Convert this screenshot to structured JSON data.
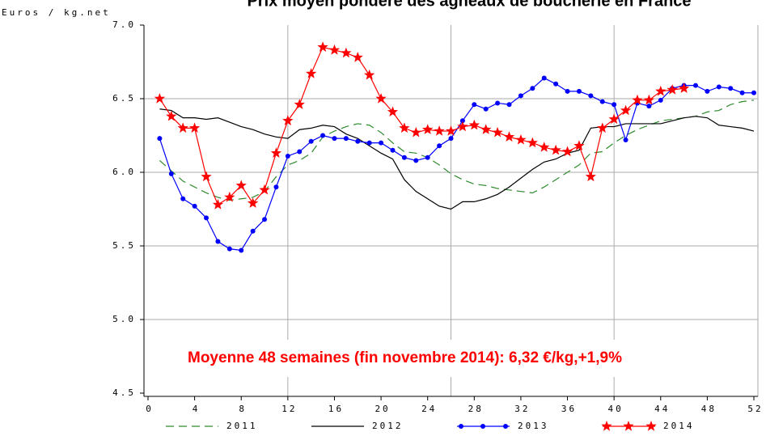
{
  "chart_data": {
    "type": "line",
    "title": "Prix moyen pondéré des agneaux de boucherie en France",
    "y_label": "Euros / kg.net",
    "annotation": "Moyenne 48 semaines (fin novembre 2014): 6,32 €/kg,+1,9%",
    "x": [
      1,
      2,
      3,
      4,
      5,
      6,
      7,
      8,
      9,
      10,
      11,
      12,
      13,
      14,
      15,
      16,
      17,
      18,
      19,
      20,
      21,
      22,
      23,
      24,
      25,
      26,
      27,
      28,
      29,
      30,
      31,
      32,
      33,
      34,
      35,
      36,
      37,
      38,
      39,
      40,
      41,
      42,
      43,
      44,
      45,
      46,
      47,
      48,
      49,
      50,
      51,
      52
    ],
    "xlim": [
      0,
      52
    ],
    "xticks": [
      0,
      4,
      8,
      12,
      16,
      20,
      24,
      28,
      32,
      36,
      40,
      44,
      48,
      52
    ],
    "x_grid_at": [
      12,
      26,
      40
    ],
    "ylim": [
      4.5,
      7
    ],
    "yticks": [
      {
        "value": 4.5,
        "label": "4.5"
      },
      {
        "value": 5,
        "label": "5.0"
      },
      {
        "value": 5.5,
        "label": "5.5"
      },
      {
        "value": 6,
        "label": "6.0"
      },
      {
        "value": 6.5,
        "label": "6.5"
      },
      {
        "value": 7,
        "label": "7.0"
      }
    ],
    "y_grid_at": [
      5,
      5.5,
      6,
      6.5
    ],
    "legend": "bottom",
    "series": [
      {
        "name": "2011",
        "color": "#2e8b2e",
        "dash": true,
        "marker": "none",
        "values": [
          6.08,
          6.01,
          5.94,
          5.9,
          5.86,
          5.83,
          5.81,
          5.82,
          5.83,
          5.87,
          5.97,
          6.05,
          6.08,
          6.13,
          6.24,
          6.28,
          6.31,
          6.33,
          6.32,
          6.27,
          6.2,
          6.14,
          6.13,
          6.1,
          6.05,
          5.99,
          5.95,
          5.92,
          5.91,
          5.89,
          5.88,
          5.87,
          5.86,
          5.9,
          5.95,
          6.0,
          6.05,
          6.13,
          6.14,
          6.2,
          6.25,
          6.29,
          6.32,
          6.35,
          6.36,
          6.37,
          6.38,
          6.41,
          6.42,
          6.46,
          6.48,
          6.49
        ]
      },
      {
        "name": "2012",
        "color": "#000000",
        "dash": false,
        "marker": "none",
        "values": [
          6.43,
          6.42,
          6.37,
          6.37,
          6.36,
          6.37,
          6.34,
          6.31,
          6.29,
          6.26,
          6.24,
          6.23,
          6.29,
          6.3,
          6.32,
          6.31,
          6.26,
          6.23,
          6.18,
          6.13,
          6.09,
          5.95,
          5.87,
          5.82,
          5.77,
          5.75,
          5.8,
          5.8,
          5.82,
          5.85,
          5.9,
          5.96,
          6.02,
          6.07,
          6.09,
          6.13,
          6.15,
          6.3,
          6.31,
          6.31,
          6.33,
          6.33,
          6.33,
          6.33,
          6.35,
          6.37,
          6.38,
          6.37,
          6.32,
          6.31,
          6.3,
          6.28
        ]
      },
      {
        "name": "2013",
        "color": "#0000ff",
        "dash": false,
        "marker": "circle",
        "values": [
          6.23,
          5.99,
          5.82,
          5.77,
          5.69,
          5.53,
          5.48,
          5.47,
          5.6,
          5.68,
          5.9,
          6.11,
          6.14,
          6.21,
          6.25,
          6.23,
          6.23,
          6.21,
          6.2,
          6.2,
          6.15,
          6.1,
          6.08,
          6.1,
          6.18,
          6.23,
          6.35,
          6.46,
          6.43,
          6.47,
          6.46,
          6.52,
          6.57,
          6.64,
          6.6,
          6.55,
          6.55,
          6.52,
          6.48,
          6.46,
          6.22,
          6.47,
          6.45,
          6.49,
          6.57,
          6.59,
          6.59,
          6.55,
          6.58,
          6.57,
          6.54,
          6.54
        ]
      },
      {
        "name": "2014",
        "color": "#ff0000",
        "dash": false,
        "marker": "star",
        "values": [
          6.5,
          6.38,
          6.3,
          6.3,
          5.97,
          5.78,
          5.83,
          5.91,
          5.79,
          5.88,
          6.13,
          6.35,
          6.46,
          6.67,
          6.85,
          6.83,
          6.81,
          6.78,
          6.66,
          6.5,
          6.41,
          6.3,
          6.27,
          6.29,
          6.28,
          6.28,
          6.31,
          6.32,
          6.29,
          6.27,
          6.24,
          6.22,
          6.2,
          6.17,
          6.15,
          6.14,
          6.18,
          5.97,
          6.3,
          6.36,
          6.42,
          6.49,
          6.49,
          6.55,
          6.56,
          6.57,
          null,
          null,
          null,
          null,
          null,
          null
        ]
      }
    ]
  }
}
